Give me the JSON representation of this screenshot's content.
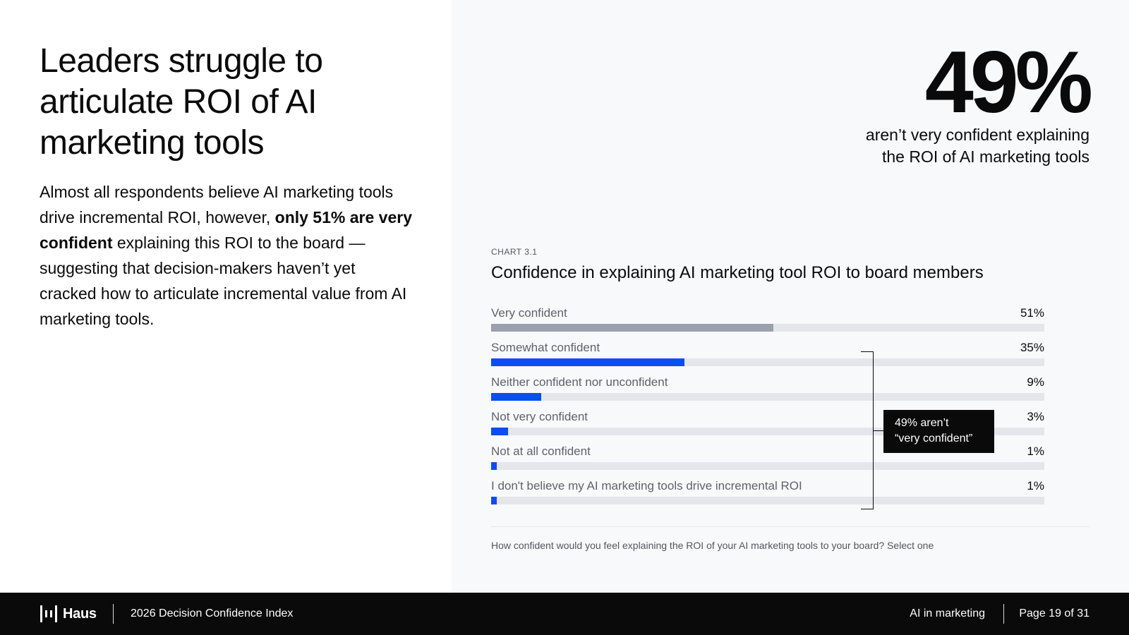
{
  "headline": "Leaders struggle to articulate ROI of AI marketing tools",
  "body": {
    "part1": "Almost all respondents believe AI marketing tools drive incremental ROI, however, ",
    "bold": "only 51% are very confident",
    "part2": " explaining this ROI to the board — suggesting that decision-makers haven’t yet cracked how to articulate incremental value from AI marketing tools."
  },
  "stat": {
    "value": "49%",
    "caption_line1": "aren’t very confident explaining",
    "caption_line2": "the ROI of AI marketing tools"
  },
  "chart_data": {
    "type": "bar",
    "orientation": "horizontal",
    "kicker": "CHART 3.1",
    "title": "Confidence in explaining AI marketing tool ROI to board members",
    "categories": [
      "Very confident",
      "Somewhat confident",
      "Neither confident nor unconfident",
      "Not very confident",
      "Not at all confident",
      "I don't believe my AI marketing tools drive incremental ROI"
    ],
    "values": [
      51,
      35,
      9,
      3,
      1,
      1
    ],
    "value_labels": [
      "51%",
      "35%",
      "9%",
      "3%",
      "1%",
      "1%"
    ],
    "xlim": [
      0,
      100
    ],
    "colors": [
      "#9aa0ad",
      "#0a4df0",
      "#0a4df0",
      "#0a4df0",
      "#0a4df0",
      "#0a4df0"
    ],
    "track_color": "#e4e6ea",
    "annotation": {
      "line1": "49% aren’t",
      "line2": "“very confident”"
    },
    "footnote": "How confident would you feel explaining the ROI of your AI marketing tools to your board? Select one"
  },
  "footer": {
    "brand": "Haus",
    "report": "2026 Decision Confidence Index",
    "section": "AI in marketing",
    "page": "Page 19 of 31"
  }
}
